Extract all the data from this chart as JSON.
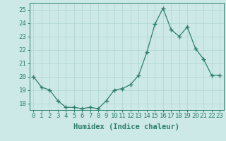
{
  "x": [
    0,
    1,
    2,
    3,
    4,
    5,
    6,
    7,
    8,
    9,
    10,
    11,
    12,
    13,
    14,
    15,
    16,
    17,
    18,
    19,
    20,
    21,
    22,
    23
  ],
  "y": [
    20.0,
    19.2,
    19.0,
    18.2,
    17.7,
    17.7,
    17.6,
    17.7,
    17.6,
    18.2,
    19.0,
    19.1,
    19.4,
    20.1,
    21.8,
    23.9,
    25.1,
    23.5,
    23.0,
    23.7,
    22.1,
    21.3,
    20.1,
    20.1
  ],
  "xlabel": "Humidex (Indice chaleur)",
  "xlim": [
    -0.5,
    23.5
  ],
  "ylim": [
    17.5,
    25.5
  ],
  "yticks": [
    18,
    19,
    20,
    21,
    22,
    23,
    24,
    25
  ],
  "xticks": [
    0,
    1,
    2,
    3,
    4,
    5,
    6,
    7,
    8,
    9,
    10,
    11,
    12,
    13,
    14,
    15,
    16,
    17,
    18,
    19,
    20,
    21,
    22,
    23
  ],
  "line_color": "#2e7d6e",
  "marker": "+",
  "marker_size": 4,
  "marker_lw": 1.0,
  "bg_color": "#cce9e7",
  "grid_color": "#aed4d1",
  "axis_color": "#2e7d6e",
  "tick_color": "#2e7d6e",
  "label_color": "#2e7d6e",
  "xlabel_fontsize": 7.5,
  "tick_fontsize": 6.5
}
